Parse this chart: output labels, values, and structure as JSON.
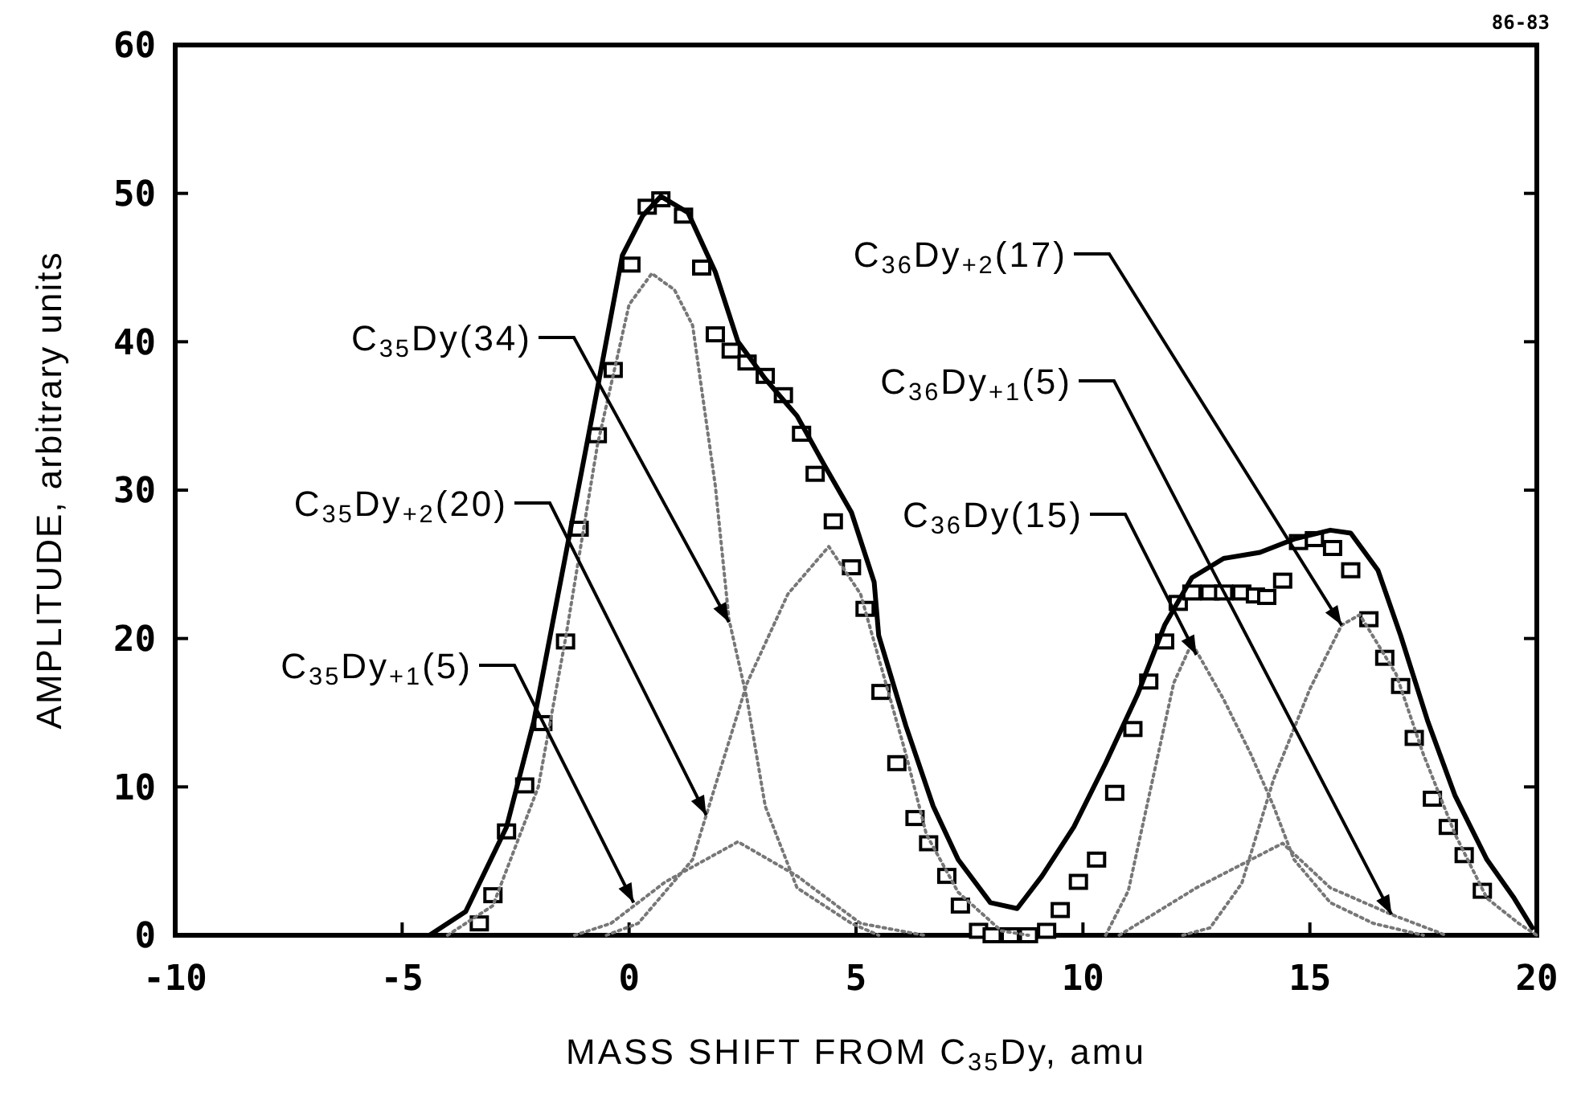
{
  "chart_data": {
    "type": "line",
    "xlabel": "MASS SHIFT FROM C$_{35}$Dy, amu",
    "ylabel": "AMPLITUDE, arbitrary units",
    "xlim": [
      -10,
      20
    ],
    "xticks": [
      -10,
      -5,
      0,
      5,
      10,
      15,
      20
    ],
    "ylim": [
      0,
      60
    ],
    "yticks": [
      0,
      10,
      20,
      30,
      40,
      50,
      60
    ],
    "grid": false,
    "series": [
      {
        "type": "scatter",
        "marker": "square",
        "color": "#000000",
        "x": [
          -3.3,
          -3.0,
          -2.7,
          -2.3,
          -1.9,
          -1.4,
          -1.1,
          -0.7,
          -0.35,
          0.04,
          0.4,
          0.7,
          1.2,
          1.6,
          1.9,
          2.25,
          2.6,
          3.0,
          3.4,
          3.8,
          4.1,
          4.5,
          4.9,
          5.2,
          5.55,
          5.9,
          6.3,
          6.6,
          7.0,
          7.3,
          7.7,
          8.0,
          8.4,
          8.8,
          9.2,
          9.5,
          9.9,
          10.3,
          10.7,
          11.1,
          11.45,
          11.8,
          12.1,
          12.4,
          12.8,
          13.1,
          13.5,
          13.8,
          14.05,
          14.4,
          14.75,
          15.1,
          15.5,
          15.9,
          16.3,
          16.65,
          17.0,
          17.3,
          17.7,
          18.05,
          18.4,
          18.8
        ],
        "values": [
          0.8,
          2.7,
          7.0,
          10.1,
          14.3,
          19.8,
          27.4,
          33.7,
          38.1,
          45.2,
          49.1,
          49.6,
          48.5,
          45.0,
          40.5,
          39.4,
          38.6,
          37.7,
          36.4,
          33.8,
          31.1,
          27.9,
          24.8,
          22.0,
          16.4,
          11.6,
          7.9,
          6.2,
          4.0,
          2.0,
          0.3,
          0,
          0,
          0,
          0.3,
          1.7,
          3.6,
          5.1,
          9.6,
          13.9,
          17.1,
          19.8,
          22.4,
          23.1,
          23.1,
          23.1,
          23.1,
          22.9,
          22.8,
          23.9,
          26.5,
          26.7,
          26.1,
          24.6,
          21.3,
          18.7,
          16.8,
          13.3,
          9.2,
          7.3,
          5.4,
          3.0
        ]
      },
      {
        "type": "line",
        "marker": "none",
        "line_style": "solid",
        "color": "#000000",
        "x": [
          -4.4,
          -3.6,
          -2.7,
          -2.1,
          -1.4,
          -0.7,
          -0.15,
          0.3,
          0.7,
          1.3,
          1.9,
          2.4,
          3.0,
          3.7,
          4.3,
          4.9,
          5.4,
          5.5,
          6.1,
          6.7,
          7.25,
          7.96,
          8.55,
          9.1,
          9.8,
          10.5,
          11.2,
          11.8,
          12.4,
          13.1,
          13.9,
          14.65,
          15.45,
          15.9,
          16.5,
          17.0,
          17.6,
          18.2,
          18.9,
          19.5,
          19.9
        ],
        "values": [
          0,
          1.6,
          7.3,
          14.4,
          25.6,
          36.8,
          45.8,
          48.5,
          49.8,
          48.7,
          44.7,
          40.0,
          37.5,
          35.0,
          31.7,
          28.5,
          23.8,
          20.2,
          14.1,
          8.7,
          5.1,
          2.2,
          1.8,
          4.0,
          7.3,
          11.6,
          16.2,
          20.9,
          24.1,
          25.4,
          25.8,
          26.7,
          27.3,
          27.1,
          24.6,
          20.2,
          14.4,
          9.4,
          5.1,
          2.5,
          0.5
        ]
      },
      {
        "type": "line",
        "marker": "none",
        "line_style": "dotted",
        "color": "#777777",
        "x": [
          -4,
          -3,
          -2,
          -1.4,
          -0.7,
          0,
          0.5,
          1.0,
          1.4,
          1.9,
          2.2,
          2.6,
          3.0,
          3.7,
          4.9,
          5.5
        ],
        "values": [
          0,
          2,
          10,
          20,
          33,
          42.5,
          44.6,
          43.5,
          41.1,
          30.3,
          21.3,
          15.9,
          8.7,
          3.2,
          0.8,
          0
        ]
      },
      {
        "type": "line",
        "marker": "none",
        "line_style": "dotted",
        "color": "#777777",
        "x": [
          -1.2,
          -0.4,
          0.8,
          2.4,
          3.7,
          5.1,
          6.5
        ],
        "values": [
          0,
          0.8,
          3.6,
          6.3,
          4.0,
          0.8,
          0
        ]
      },
      {
        "type": "line",
        "marker": "none",
        "line_style": "dotted",
        "color": "#777777",
        "x": [
          -0.5,
          0.2,
          1.4,
          1.7,
          2.6,
          3.5,
          4.4,
          5.1,
          5.6,
          6.1,
          6.55,
          7.25,
          8.2,
          8.8
        ],
        "values": [
          0,
          0.8,
          5.1,
          8.1,
          17,
          23,
          26.2,
          23,
          17.6,
          12.2,
          6.8,
          2.9,
          0.3,
          0
        ]
      },
      {
        "type": "line",
        "marker": "none",
        "line_style": "dotted",
        "color": "#777777",
        "x": [
          10.5,
          11.0,
          11.5,
          12.0,
          12.4,
          13.1,
          13.7,
          14.2,
          14.65,
          15.45,
          16.4,
          17.5
        ],
        "values": [
          0,
          3,
          10,
          17,
          19.7,
          15.9,
          12.2,
          8.7,
          5.1,
          2.2,
          0.8,
          0
        ]
      },
      {
        "type": "line",
        "marker": "none",
        "line_style": "dotted",
        "color": "#777777",
        "x": [
          10.8,
          12.5,
          14.4,
          15.45,
          16.8,
          18
        ],
        "values": [
          0,
          3.2,
          6.2,
          3.2,
          1.4,
          0
        ]
      },
      {
        "type": "line",
        "marker": "none",
        "line_style": "dotted",
        "color": "#777777",
        "x": [
          12.2,
          12.8,
          13.5,
          14.2,
          15.0,
          15.7,
          16.1,
          16.9,
          17.5,
          18.2,
          18.9,
          19.6,
          20
        ],
        "values": [
          0,
          0.5,
          3.5,
          10.5,
          16.6,
          20.9,
          21.6,
          17.6,
          12.2,
          6.8,
          2.5,
          0.8,
          0
        ]
      }
    ],
    "annotations": [
      {
        "text": "C$_{36}$Dy$_{+2}$(17)",
        "x": 15.7,
        "y": 20.9
      },
      {
        "text": "C$_{35}$Dy(34)",
        "x": 2.2,
        "y": 21.1
      },
      {
        "text": "C$_{36}$Dy$_{+1}$(5)",
        "x": 16.8,
        "y": 1.4
      },
      {
        "text": "C$_{35}$Dy$_{+2}$(20)",
        "x": 1.7,
        "y": 8.1
      },
      {
        "text": "C$_{36}$Dy(15)",
        "x": 12.5,
        "y": 18.9
      },
      {
        "text": "C$_{35}$Dy$_{+1}$(5)",
        "x": 0.1,
        "y": 2.2
      },
      "86-83"
    ]
  }
}
